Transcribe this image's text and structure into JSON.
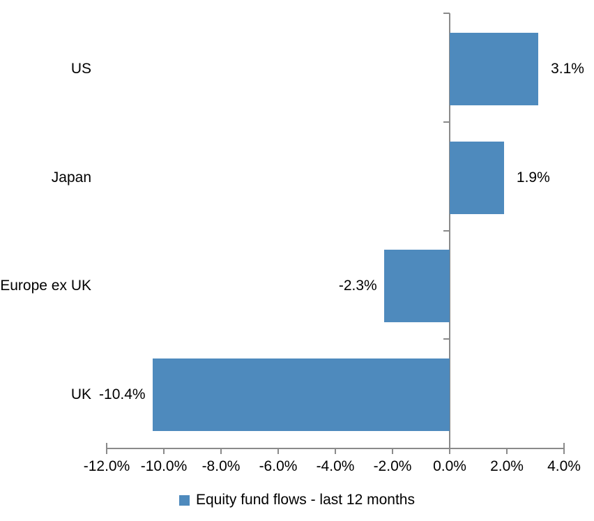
{
  "chart_data": {
    "type": "bar",
    "orientation": "horizontal",
    "categories": [
      "US",
      "Japan",
      "Europe ex UK",
      "UK"
    ],
    "series": [
      {
        "name": "Equity fund flows - last 12 months",
        "values": [
          3.1,
          1.9,
          -2.3,
          -10.4
        ]
      }
    ],
    "data_labels": [
      "3.1%",
      "1.9%",
      "-2.3%",
      "-10.4%"
    ],
    "xlim": [
      -12,
      4
    ],
    "x_tick_values": [
      -12,
      -10,
      -8,
      -6,
      -4,
      -2,
      0,
      2,
      4
    ],
    "x_tick_labels": [
      "-12.0%",
      "-10.0%",
      "-8.0%",
      "-6.0%",
      "-4.0%",
      "-2.0%",
      "0.0%",
      "2.0%",
      "4.0%"
    ],
    "grid": false,
    "legend_position": "bottom",
    "bar_color": "#4E8ABD",
    "axis_color": "#8A8A8A",
    "text_color": "#000000",
    "background_color": "#FFFFFF"
  },
  "legend": {
    "label": "Equity fund flows - last 12 months",
    "swatch_color": "#4E8ABD"
  }
}
